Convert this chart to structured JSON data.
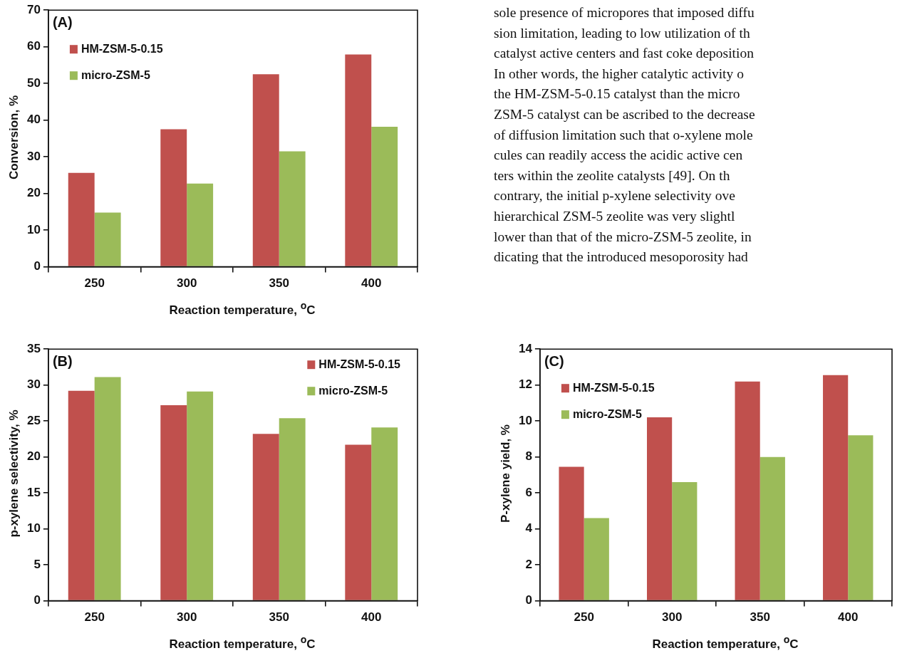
{
  "chart_data": [
    {
      "type": "bar",
      "ylabel": "Conversion, %",
      "xlabel": "Reaction temperature, $^{o}$C",
      "categories": [
        "250",
        "300",
        "350",
        "400"
      ],
      "series": [
        {
          "name": "HM-ZSM-5-0.15",
          "color": "#c0504d",
          "values": [
            25.6,
            37.5,
            52.5,
            57.9
          ]
        },
        {
          "name": "micro-ZSM-5",
          "color": "#9bbb59",
          "values": [
            14.8,
            22.7,
            31.5,
            38.2
          ]
        }
      ],
      "ylim": [
        0,
        70
      ],
      "yticks": [
        0,
        10,
        20,
        30,
        40,
        50,
        60,
        70
      ],
      "grid": false,
      "legend": "top left",
      "annotations": [
        "(A)"
      ]
    },
    {
      "type": "bar",
      "ylabel": "p-xylene selectivity, %",
      "xlabel": "Reaction temperature, $^{o}$C",
      "categories": [
        "250",
        "300",
        "350",
        "400"
      ],
      "series": [
        {
          "name": "HM-ZSM-5-0.15",
          "color": "#c0504d",
          "values": [
            29.2,
            27.2,
            23.2,
            21.7
          ]
        },
        {
          "name": "micro-ZSM-5",
          "color": "#9bbb59",
          "values": [
            31.1,
            29.1,
            25.4,
            24.1
          ]
        }
      ],
      "ylim": [
        0,
        35
      ],
      "yticks": [
        0,
        5,
        10,
        15,
        20,
        25,
        30,
        35
      ],
      "grid": false,
      "legend": "top right",
      "annotations": [
        "(B)"
      ]
    },
    {
      "type": "bar",
      "ylabel": "P-xylene yield, %",
      "xlabel": "Reaction temperature, $^{o}$C",
      "categories": [
        "250",
        "300",
        "350",
        "400"
      ],
      "series": [
        {
          "name": "HM-ZSM-5-0.15",
          "color": "#c0504d",
          "values": [
            7.45,
            10.2,
            12.2,
            12.55
          ]
        },
        {
          "name": "micro-ZSM-5",
          "color": "#9bbb59",
          "values": [
            4.6,
            6.6,
            8.0,
            9.2
          ]
        }
      ],
      "ylim": [
        0,
        14
      ],
      "yticks": [
        0,
        2,
        4,
        6,
        8,
        10,
        12,
        14
      ],
      "grid": false,
      "legend": "top left",
      "annotations": [
        "(C)"
      ]
    },
    {
      "type": "other",
      "annotations": [
        "sole presence of micropores that imposed diffu",
        "sion limitation, leading to low utilization of th",
        "catalyst active centers and fast coke deposition",
        "In other words, the higher catalytic activity o",
        "the HM-ZSM-5-0.15 catalyst than the micro",
        "ZSM-5 catalyst can be ascribed to the decrease",
        "of diffusion limitation such that o-xylene mole",
        "cules can readily access the acidic active cen",
        "ters within the zeolite catalysts [49]. On th",
        "contrary, the initial p-xylene selectivity ove",
        "hierarchical ZSM-5 zeolite was very slightl",
        "lower than that of the micro-ZSM-5 zeolite, in",
        "dicating that the introduced mesoporosity had"
      ]
    }
  ]
}
